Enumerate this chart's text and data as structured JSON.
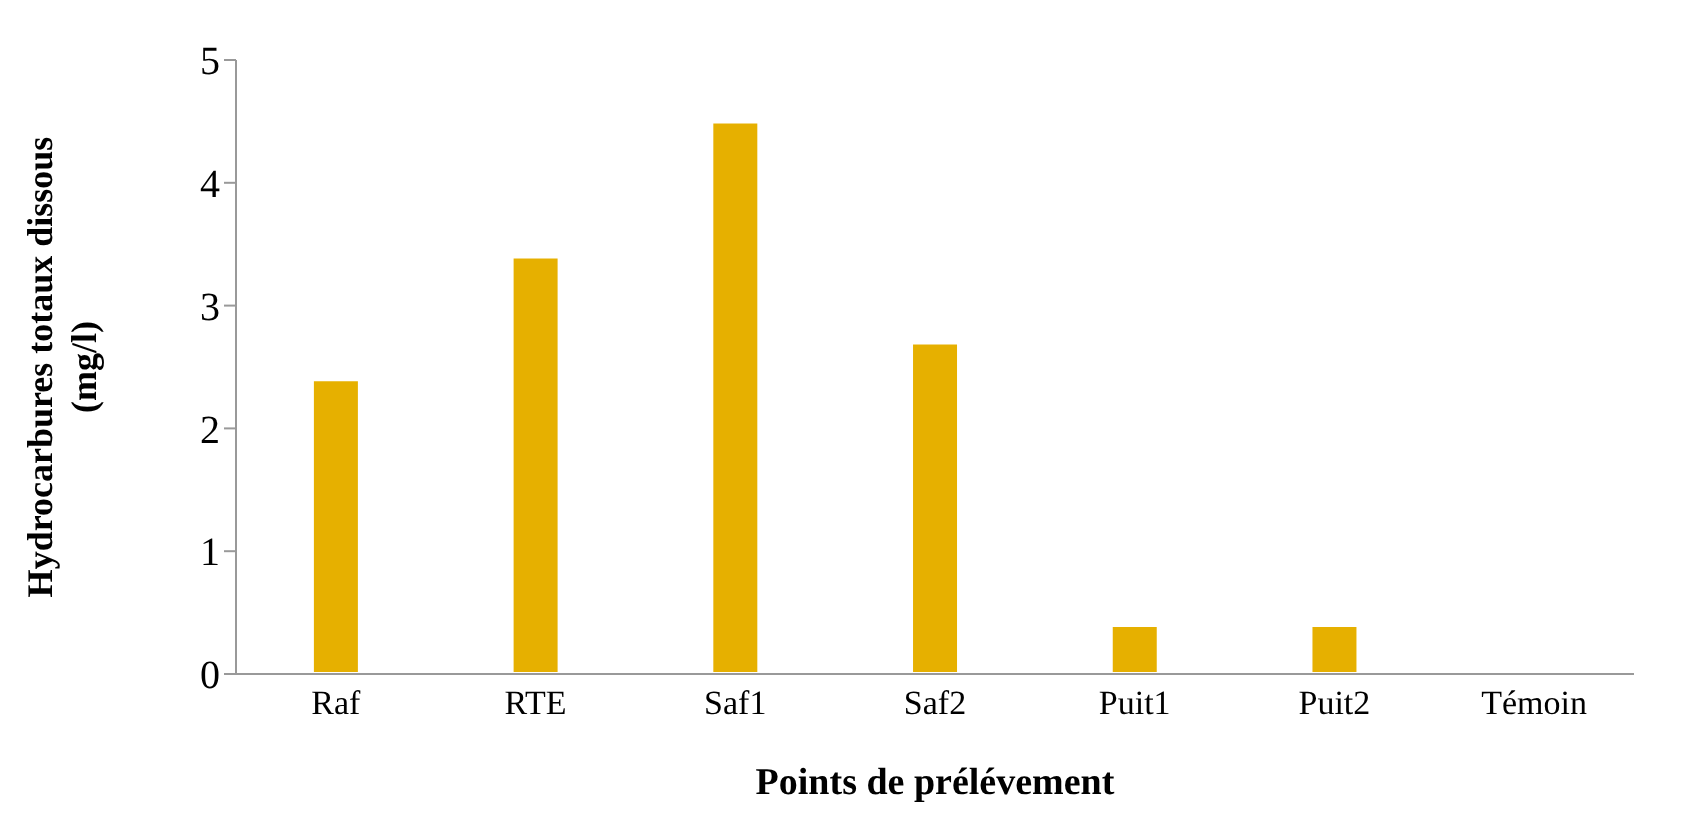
{
  "chart_data": {
    "type": "bar",
    "xlabel": "Points de prélévement",
    "ylabel": "Hydrocarbures totaux dissous (mg/l)",
    "categories": [
      "Raf",
      "RTE",
      "Saf1",
      "Saf2",
      "Puit1",
      "Puit2",
      "Témoin"
    ],
    "values": [
      2.4,
      3.4,
      4.5,
      2.7,
      0.4,
      0.4,
      0
    ],
    "color": "#e6b000",
    "ylim": [
      0,
      5
    ],
    "yticks": [
      0,
      1,
      2,
      3,
      4,
      5
    ],
    "grid": false,
    "legend": false
  }
}
